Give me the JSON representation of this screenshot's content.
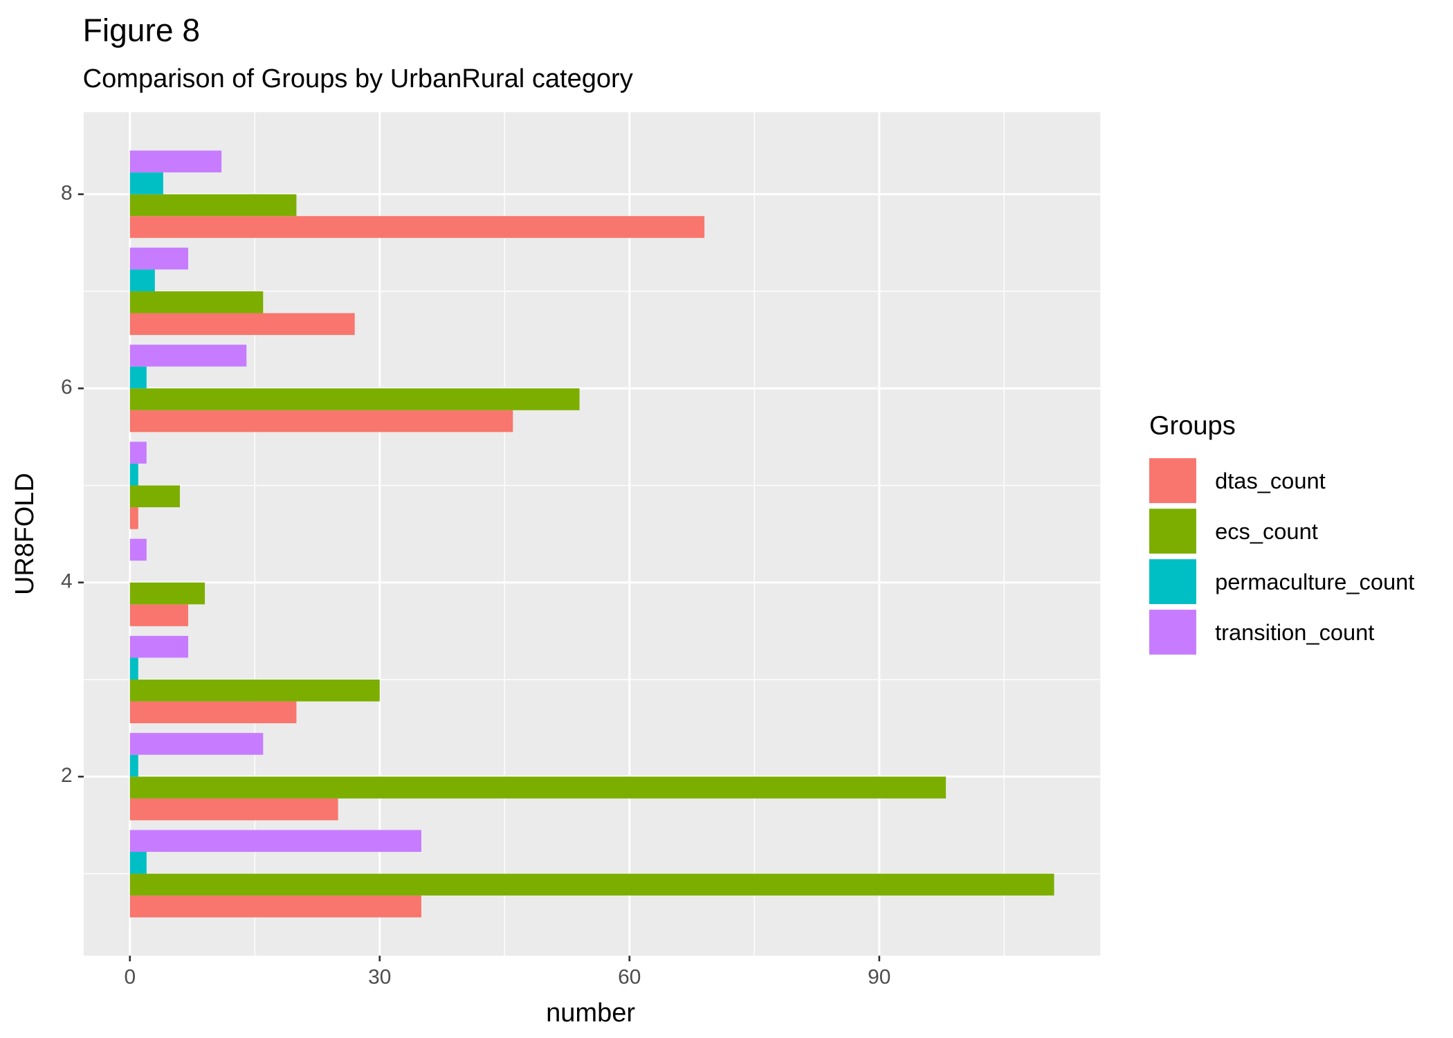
{
  "chart_data": {
    "type": "bar",
    "orientation": "horizontal",
    "title": "Figure 8",
    "subtitle": "Comparison of Groups by UrbanRural category",
    "x_label": "number",
    "y_label": "UR8FOLD",
    "legend_title": "Groups",
    "categories": [
      1,
      2,
      3,
      4,
      5,
      6,
      7,
      8
    ],
    "series": [
      {
        "name": "dtas_count",
        "color": "#F8766D",
        "values": [
          35,
          25,
          20,
          7,
          1,
          46,
          27,
          69
        ]
      },
      {
        "name": "ecs_count",
        "color": "#7CAE00",
        "values": [
          111,
          98,
          30,
          9,
          6,
          54,
          16,
          20
        ]
      },
      {
        "name": "permaculture_count",
        "color": "#00BFC4",
        "values": [
          2,
          1,
          1,
          0,
          1,
          2,
          3,
          4
        ]
      },
      {
        "name": "transition_count",
        "color": "#C77CFF",
        "values": [
          35,
          16,
          7,
          2,
          2,
          14,
          7,
          11
        ]
      }
    ],
    "xlim": [
      -5.55,
      116.55
    ],
    "xticks": [
      0,
      30,
      60,
      90
    ],
    "ylim": [
      0.155,
      8.845
    ],
    "yticks": [
      2,
      4,
      6,
      8
    ],
    "grid": true
  }
}
